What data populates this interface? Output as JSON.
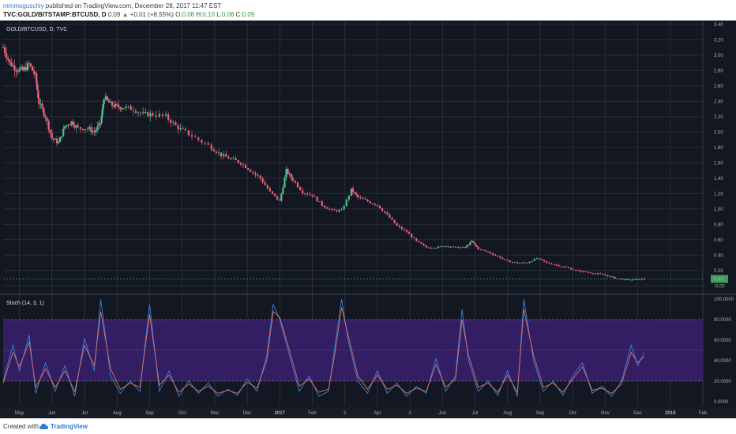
{
  "header": {
    "author": "mmmoguschiy",
    "published_text": " published on TradingView.com, December 28, 2017 11:47 EST",
    "symbol": "TVC:GOLD/BITSTAMP:BTCUSD, D",
    "last_price": "0.09",
    "change": "+0.01 (+8.55%)",
    "ohlc_o_label": "O:",
    "ohlc_o": "0.08",
    "ohlc_h_label": "H:",
    "ohlc_h": "0.10",
    "ohlc_l_label": "L:",
    "ohlc_l": "0.08",
    "ohlc_c_label": "C:",
    "ohlc_c": "0.09"
  },
  "footer": {
    "created_with": "Created with",
    "brand": "TradingView"
  },
  "colors": {
    "background": "#131722",
    "grid": "#2a2e39",
    "up_candle": "#4fbf88",
    "down_candle": "#e8637a",
    "stoch_k": "#2f86e4",
    "stoch_d": "#e0705a",
    "band_fill": "#3a1e6e",
    "price_badge": "#3d9f5e"
  },
  "chart_data": [
    {
      "type": "candlestick",
      "title": "GOLD/BTCUSD, D, TVC",
      "x_ticks": [
        "May",
        "Jun",
        "Jul",
        "Aug",
        "Sep",
        "Oct",
        "Nov",
        "Dec",
        "2017",
        "Feb",
        "2",
        "Apr",
        "2",
        "Jun",
        "Jul",
        "Aug",
        "Sep",
        "Oct",
        "Nov",
        "Dec",
        "2018",
        "Feb"
      ],
      "y_ticks": [
        "3.40",
        "3.20",
        "3.00",
        "2.80",
        "2.60",
        "2.40",
        "2.20",
        "2.00",
        "1.80",
        "1.60",
        "1.40",
        "1.20",
        "1.00",
        "0.80",
        "0.60",
        "0.40",
        "0.20",
        "0.09",
        "-0.00"
      ],
      "ylim": [
        -0.1,
        3.45
      ],
      "last_value": "0.09",
      "x_range_months": [
        0,
        21.5
      ],
      "series": [
        {
          "name": "GOLD/BTCUSD",
          "points": [
            [
              0.0,
              3.1
            ],
            [
              0.2,
              2.9
            ],
            [
              0.4,
              2.82
            ],
            [
              0.6,
              2.8
            ],
            [
              0.8,
              2.88
            ],
            [
              1.0,
              2.72
            ],
            [
              1.1,
              2.38
            ],
            [
              1.3,
              2.2
            ],
            [
              1.5,
              1.92
            ],
            [
              1.7,
              1.86
            ],
            [
              1.9,
              2.08
            ],
            [
              2.1,
              2.13
            ],
            [
              2.3,
              2.05
            ],
            [
              2.6,
              2.05
            ],
            [
              2.8,
              2.0
            ],
            [
              3.0,
              2.12
            ],
            [
              3.1,
              2.45
            ],
            [
              3.3,
              2.36
            ],
            [
              3.5,
              2.33
            ],
            [
              3.7,
              2.32
            ],
            [
              4.0,
              2.3
            ],
            [
              4.3,
              2.23
            ],
            [
              4.6,
              2.23
            ],
            [
              5.0,
              2.2
            ],
            [
              5.3,
              2.08
            ],
            [
              5.6,
              2.0
            ],
            [
              6.0,
              1.9
            ],
            [
              6.4,
              1.8
            ],
            [
              6.7,
              1.7
            ],
            [
              7.0,
              1.65
            ],
            [
              7.3,
              1.6
            ],
            [
              7.6,
              1.5
            ],
            [
              7.9,
              1.4
            ],
            [
              8.2,
              1.22
            ],
            [
              8.5,
              1.1
            ],
            [
              8.7,
              1.5
            ],
            [
              8.9,
              1.38
            ],
            [
              9.2,
              1.22
            ],
            [
              9.5,
              1.18
            ],
            [
              9.8,
              1.05
            ],
            [
              10.1,
              0.98
            ],
            [
              10.4,
              0.98
            ],
            [
              10.7,
              1.25
            ],
            [
              10.9,
              1.15
            ],
            [
              11.2,
              1.1
            ],
            [
              11.5,
              1.05
            ],
            [
              11.8,
              0.92
            ],
            [
              12.1,
              0.78
            ],
            [
              12.4,
              0.7
            ],
            [
              12.7,
              0.58
            ],
            [
              13.0,
              0.5
            ],
            [
              13.3,
              0.5
            ],
            [
              13.6,
              0.52
            ],
            [
              13.9,
              0.5
            ],
            [
              14.2,
              0.5
            ],
            [
              14.4,
              0.58
            ],
            [
              14.6,
              0.48
            ],
            [
              14.9,
              0.44
            ],
            [
              15.2,
              0.38
            ],
            [
              15.5,
              0.32
            ],
            [
              15.8,
              0.3
            ],
            [
              16.1,
              0.3
            ],
            [
              16.4,
              0.36
            ],
            [
              16.7,
              0.3
            ],
            [
              17.0,
              0.27
            ],
            [
              17.3,
              0.24
            ],
            [
              17.6,
              0.2
            ],
            [
              17.9,
              0.18
            ],
            [
              18.2,
              0.16
            ],
            [
              18.5,
              0.14
            ],
            [
              18.8,
              0.1
            ],
            [
              19.1,
              0.08
            ],
            [
              19.4,
              0.08
            ],
            [
              19.7,
              0.09
            ]
          ]
        }
      ]
    },
    {
      "type": "line",
      "title": "Stoch (14, 3, 1)",
      "y_ticks": [
        "100.0000",
        "80.0000",
        "60.0000",
        "40.0000",
        "20.0000",
        "0.0000"
      ],
      "ylim": [
        -4,
        104
      ],
      "band": [
        20,
        80
      ],
      "series": [
        {
          "name": "%K",
          "points": [
            [
              0.0,
              20
            ],
            [
              0.3,
              55
            ],
            [
              0.5,
              30
            ],
            [
              0.8,
              65
            ],
            [
              1.0,
              8
            ],
            [
              1.3,
              38
            ],
            [
              1.6,
              10
            ],
            [
              1.9,
              35
            ],
            [
              2.2,
              5
            ],
            [
              2.5,
              62
            ],
            [
              2.8,
              30
            ],
            [
              3.0,
              100
            ],
            [
              3.3,
              25
            ],
            [
              3.6,
              8
            ],
            [
              3.9,
              20
            ],
            [
              4.2,
              10
            ],
            [
              4.5,
              95
            ],
            [
              4.8,
              10
            ],
            [
              5.1,
              30
            ],
            [
              5.4,
              5
            ],
            [
              5.7,
              20
            ],
            [
              6.0,
              8
            ],
            [
              6.3,
              18
            ],
            [
              6.6,
              5
            ],
            [
              6.9,
              12
            ],
            [
              7.2,
              6
            ],
            [
              7.5,
              22
            ],
            [
              7.8,
              10
            ],
            [
              8.1,
              45
            ],
            [
              8.3,
              95
            ],
            [
              8.5,
              80
            ],
            [
              8.8,
              45
            ],
            [
              9.1,
              10
            ],
            [
              9.4,
              25
            ],
            [
              9.7,
              5
            ],
            [
              10.0,
              10
            ],
            [
              10.2,
              55
            ],
            [
              10.4,
              100
            ],
            [
              10.6,
              60
            ],
            [
              10.9,
              20
            ],
            [
              11.2,
              8
            ],
            [
              11.5,
              30
            ],
            [
              11.8,
              8
            ],
            [
              12.1,
              18
            ],
            [
              12.4,
              5
            ],
            [
              12.7,
              15
            ],
            [
              13.0,
              8
            ],
            [
              13.3,
              42
            ],
            [
              13.6,
              10
            ],
            [
              13.9,
              25
            ],
            [
              14.1,
              90
            ],
            [
              14.3,
              40
            ],
            [
              14.6,
              10
            ],
            [
              14.9,
              20
            ],
            [
              15.2,
              6
            ],
            [
              15.5,
              30
            ],
            [
              15.8,
              5
            ],
            [
              16.0,
              100
            ],
            [
              16.3,
              40
            ],
            [
              16.6,
              10
            ],
            [
              16.9,
              20
            ],
            [
              17.2,
              6
            ],
            [
              17.5,
              25
            ],
            [
              17.8,
              38
            ],
            [
              18.1,
              8
            ],
            [
              18.4,
              15
            ],
            [
              18.7,
              5
            ],
            [
              19.0,
              20
            ],
            [
              19.3,
              55
            ],
            [
              19.5,
              35
            ],
            [
              19.7,
              48
            ]
          ]
        },
        {
          "name": "%D",
          "points": [
            [
              0.0,
              18
            ],
            [
              0.3,
              48
            ],
            [
              0.5,
              34
            ],
            [
              0.8,
              58
            ],
            [
              1.0,
              14
            ],
            [
              1.3,
              32
            ],
            [
              1.6,
              14
            ],
            [
              1.9,
              30
            ],
            [
              2.2,
              10
            ],
            [
              2.5,
              55
            ],
            [
              2.8,
              35
            ],
            [
              3.0,
              88
            ],
            [
              3.3,
              32
            ],
            [
              3.6,
              12
            ],
            [
              3.9,
              18
            ],
            [
              4.2,
              14
            ],
            [
              4.5,
              85
            ],
            [
              4.8,
              16
            ],
            [
              5.1,
              26
            ],
            [
              5.4,
              9
            ],
            [
              5.7,
              17
            ],
            [
              6.0,
              10
            ],
            [
              6.3,
              15
            ],
            [
              6.6,
              8
            ],
            [
              6.9,
              11
            ],
            [
              7.2,
              8
            ],
            [
              7.5,
              19
            ],
            [
              7.8,
              13
            ],
            [
              8.1,
              40
            ],
            [
              8.3,
              88
            ],
            [
              8.5,
              82
            ],
            [
              8.8,
              50
            ],
            [
              9.1,
              15
            ],
            [
              9.4,
              22
            ],
            [
              9.7,
              9
            ],
            [
              10.0,
              12
            ],
            [
              10.2,
              48
            ],
            [
              10.4,
              92
            ],
            [
              10.6,
              65
            ],
            [
              10.9,
              25
            ],
            [
              11.2,
              12
            ],
            [
              11.5,
              26
            ],
            [
              11.8,
              12
            ],
            [
              12.1,
              16
            ],
            [
              12.4,
              8
            ],
            [
              12.7,
              13
            ],
            [
              13.0,
              10
            ],
            [
              13.3,
              36
            ],
            [
              13.6,
              14
            ],
            [
              13.9,
              22
            ],
            [
              14.1,
              80
            ],
            [
              14.3,
              45
            ],
            [
              14.6,
              14
            ],
            [
              14.9,
              18
            ],
            [
              15.2,
              9
            ],
            [
              15.5,
              26
            ],
            [
              15.8,
              9
            ],
            [
              16.0,
              90
            ],
            [
              16.3,
              45
            ],
            [
              16.6,
              14
            ],
            [
              16.9,
              18
            ],
            [
              17.2,
              9
            ],
            [
              17.5,
              22
            ],
            [
              17.8,
              34
            ],
            [
              18.1,
              11
            ],
            [
              18.4,
              13
            ],
            [
              18.7,
              8
            ],
            [
              19.0,
              17
            ],
            [
              19.3,
              48
            ],
            [
              19.5,
              38
            ],
            [
              19.7,
              44
            ]
          ]
        }
      ]
    }
  ]
}
